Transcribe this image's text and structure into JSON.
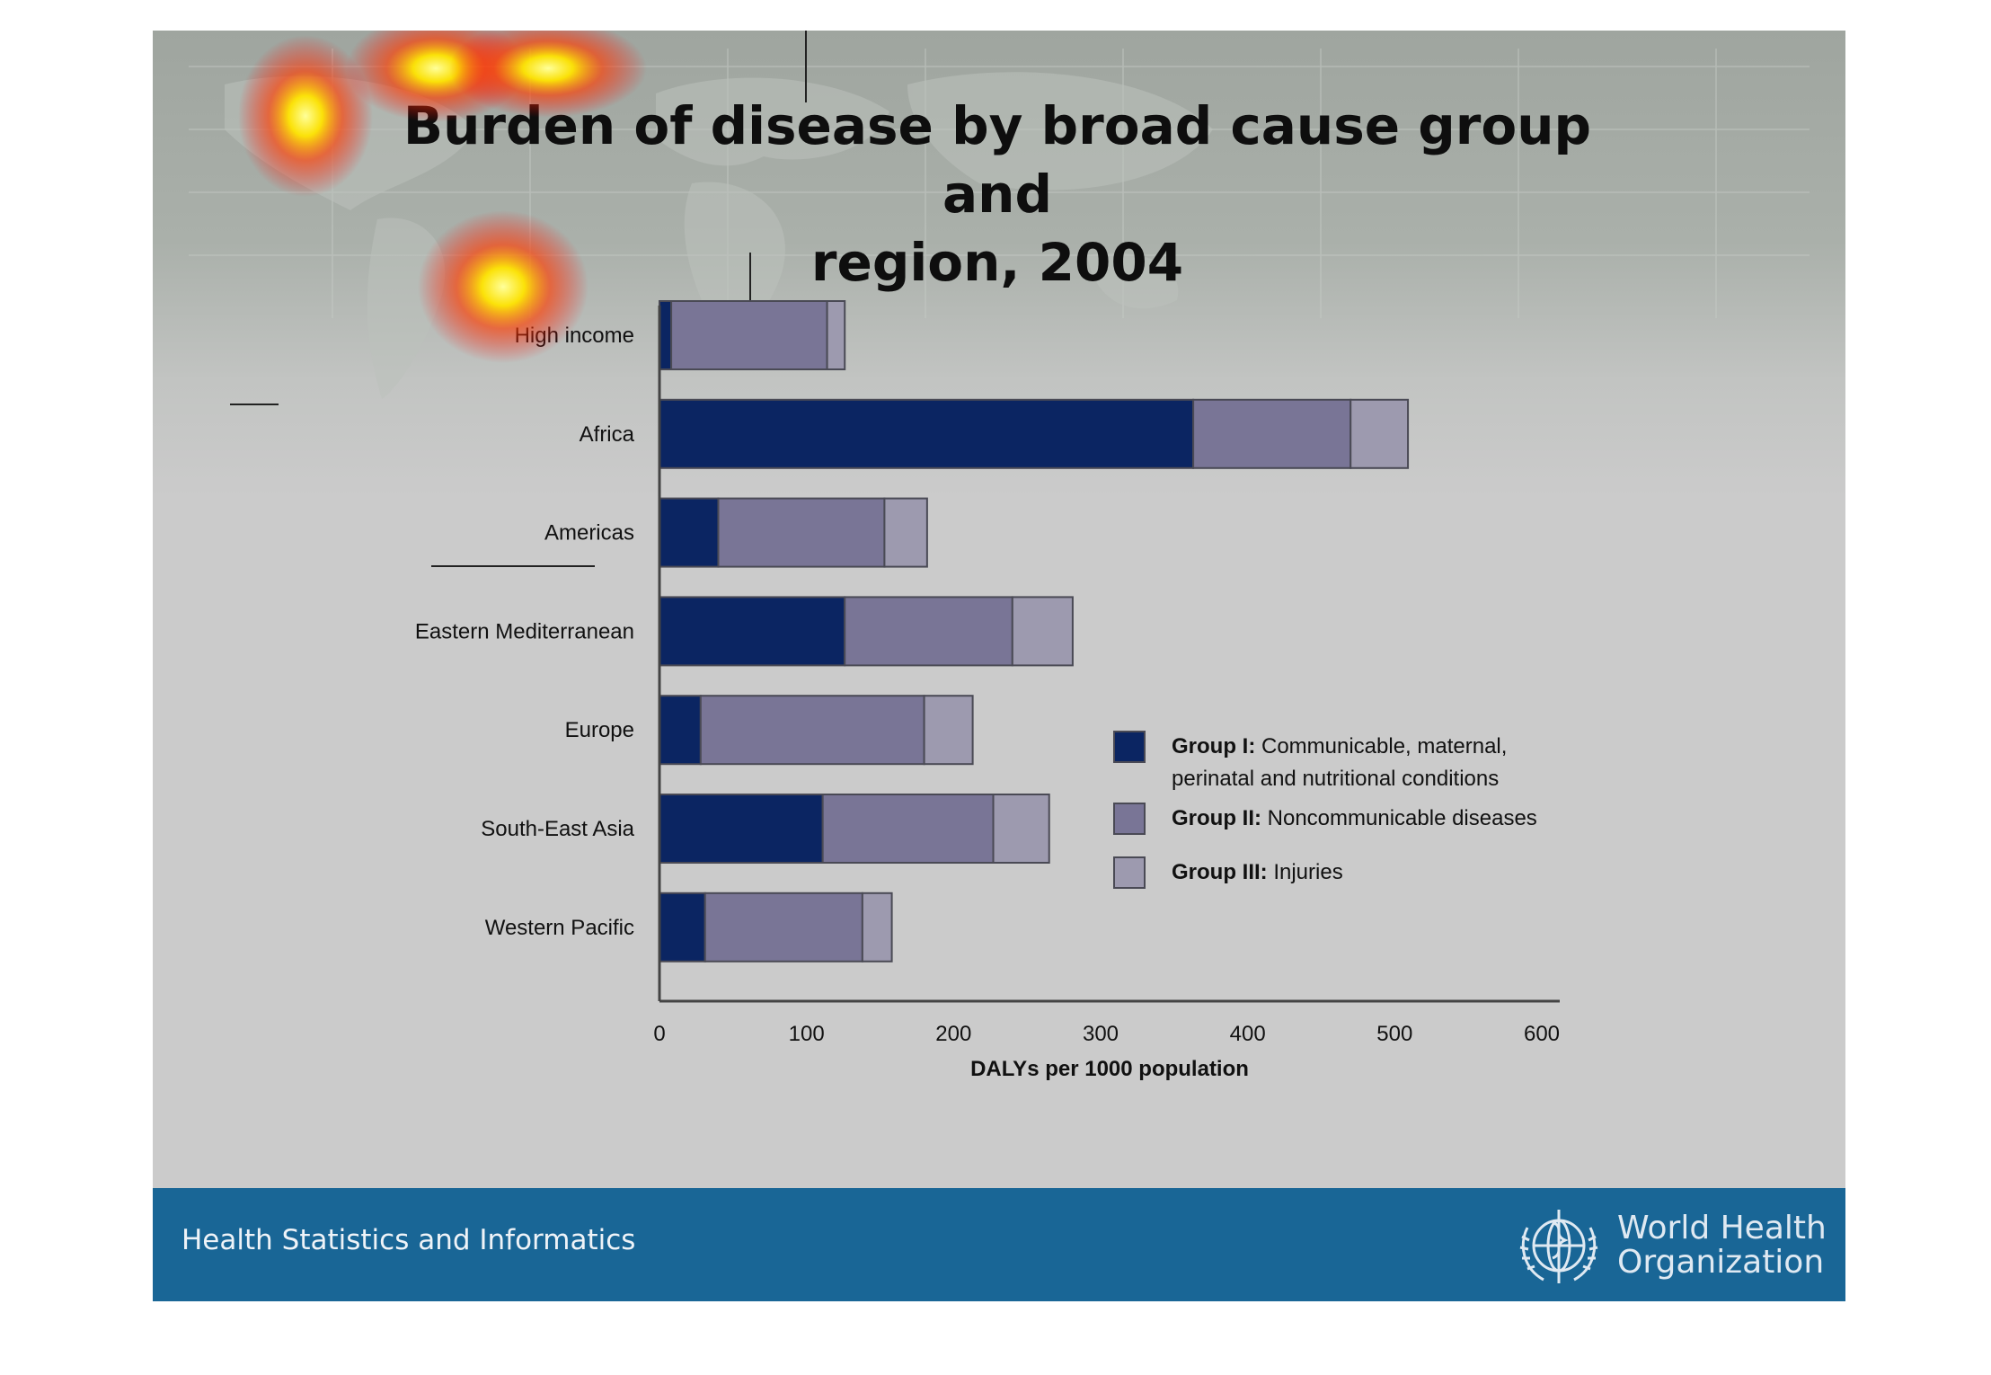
{
  "slide": {
    "title_line1": "Burden of disease by broad cause group and",
    "title_line2": "region, 2004"
  },
  "footer": {
    "text": "Health Statistics and Informatics",
    "org_line1": "World Health",
    "org_line2": "Organization"
  },
  "colors": {
    "group1": "#0b2562",
    "group2": "#797596",
    "group3": "#9d9aaf",
    "footer": "#196696",
    "slide_bg": "#cbcbcb"
  },
  "icons": [
    "who-emblem-icon",
    "world-map-icon"
  ],
  "chart_data": {
    "type": "bar",
    "orientation": "horizontal",
    "stacked": true,
    "title": "Burden of disease by broad cause group and region, 2004",
    "xlabel": "DALYs per 1000 population",
    "ylabel": "",
    "xlim": [
      0,
      600
    ],
    "xticks": [
      0,
      100,
      200,
      300,
      400,
      500,
      600
    ],
    "grid": false,
    "legend_position": "right",
    "categories": [
      "High income",
      "Africa",
      "Americas",
      "Eastern Mediterranean",
      "Europe",
      "South-East Asia",
      "Western Pacific"
    ],
    "series": [
      {
        "label_bold": "Group I:",
        "label_rest": "Communicable, maternal,",
        "label_line2": "perinatal and nutritional conditions",
        "color": "#0b2562",
        "values": [
          8,
          363,
          40,
          126,
          28,
          111,
          31
        ]
      },
      {
        "label_bold": "Group II:",
        "label_rest": "Noncommunicable diseases",
        "label_line2": "",
        "color": "#797596",
        "values": [
          106,
          107,
          113,
          114,
          152,
          116,
          107
        ]
      },
      {
        "label_bold": "Group III:",
        "label_rest": "Injuries",
        "label_line2": "",
        "color": "#9d9aaf",
        "values": [
          12,
          39,
          29,
          41,
          33,
          38,
          20
        ]
      }
    ]
  }
}
